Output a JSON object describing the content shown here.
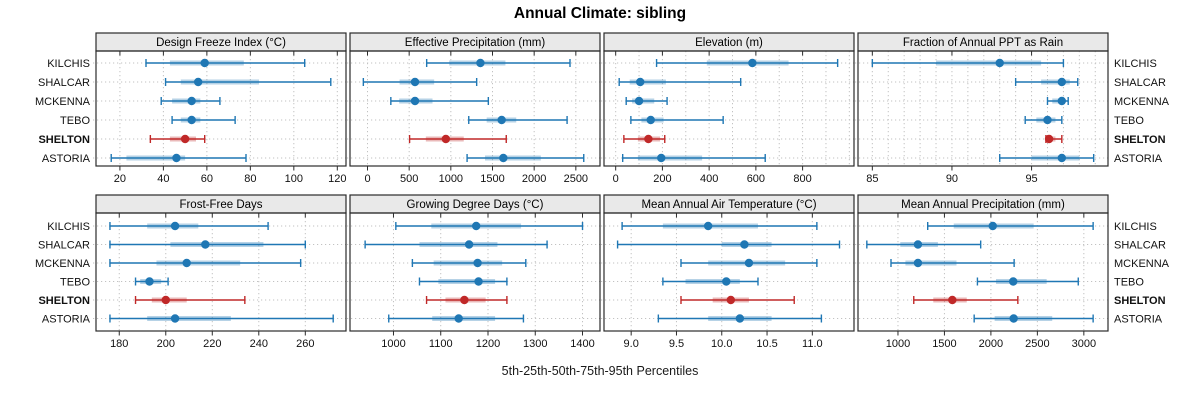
{
  "title": "Annual Climate: sibling",
  "caption": "5th-25th-50th-75th-95th Percentiles",
  "stations": [
    "KILCHIS",
    "SHALCAR",
    "MCKENNA",
    "TEBO",
    "SHELTON",
    "ASTORIA"
  ],
  "highlight_station": "SHELTON",
  "colors": {
    "series": "#1f77b4",
    "highlight": "#c02828",
    "grid": "#c2c2c2",
    "border": "#2b2b2b",
    "strip_bg": "#e9e9e9",
    "text": "#111111"
  },
  "percentile_labels": [
    "p5",
    "p25",
    "p50",
    "p75",
    "p95"
  ],
  "chart_data": [
    {
      "type": "errorbar",
      "title": "Design Freeze Index (°C)",
      "row": 0,
      "col": 0,
      "xlim": [
        9,
        124
      ],
      "ticks": [
        {
          "v": 20,
          "l": "20"
        },
        {
          "v": 40,
          "l": "40"
        },
        {
          "v": 60,
          "l": "60"
        },
        {
          "v": 80,
          "l": "80"
        },
        {
          "v": 100,
          "l": "100"
        },
        {
          "v": 120,
          "l": "120"
        }
      ],
      "grid": [
        20,
        40,
        60,
        80,
        100,
        120
      ],
      "series": {
        "KILCHIS": [
          32,
          43,
          59,
          77,
          105
        ],
        "SHALCAR": [
          41,
          48,
          56,
          84,
          117
        ],
        "MCKENNA": [
          39,
          44,
          53,
          57,
          66
        ],
        "TEBO": [
          44,
          48,
          53,
          57,
          73
        ],
        "SHELTON": [
          34,
          43,
          50,
          55,
          59
        ],
        "ASTORIA": [
          16,
          23,
          46,
          50,
          78
        ]
      }
    },
    {
      "type": "errorbar",
      "title": "Effective Precipitation (mm)",
      "row": 0,
      "col": 1,
      "xlim": [
        -210,
        2790
      ],
      "ticks": [
        {
          "v": 0,
          "l": "0"
        },
        {
          "v": 500,
          "l": "500"
        },
        {
          "v": 1000,
          "l": "1000"
        },
        {
          "v": 1500,
          "l": "1500"
        },
        {
          "v": 2000,
          "l": "2000"
        },
        {
          "v": 2500,
          "l": "2500"
        }
      ],
      "grid": [
        0,
        500,
        1000,
        1500,
        2000,
        2500
      ],
      "series": {
        "KILCHIS": [
          710,
          980,
          1355,
          1655,
          2430
        ],
        "SHALCAR": [
          -50,
          385,
          570,
          800,
          1310
        ],
        "MCKENNA": [
          280,
          380,
          570,
          780,
          1450
        ],
        "TEBO": [
          1215,
          1430,
          1610,
          1785,
          2395
        ],
        "SHELTON": [
          505,
          700,
          940,
          1155,
          1665
        ],
        "ASTORIA": [
          1195,
          1410,
          1630,
          2080,
          2595
        ]
      }
    },
    {
      "type": "errorbar",
      "title": "Elevation (m)",
      "row": 0,
      "col": 2,
      "xlim": [
        -50,
        1020
      ],
      "ticks": [
        {
          "v": 0,
          "l": "0"
        },
        {
          "v": 200,
          "l": "200"
        },
        {
          "v": 400,
          "l": "400"
        },
        {
          "v": 600,
          "l": "600"
        },
        {
          "v": 800,
          "l": "800"
        }
      ],
      "grid": [
        0,
        100,
        200,
        300,
        400,
        500,
        600,
        700,
        800,
        900,
        1000
      ],
      "series": {
        "KILCHIS": [
          175,
          390,
          585,
          740,
          950
        ],
        "SHALCAR": [
          15,
          60,
          105,
          215,
          535
        ],
        "MCKENNA": [
          45,
          70,
          100,
          165,
          220
        ],
        "TEBO": [
          65,
          110,
          150,
          205,
          460
        ],
        "SHELTON": [
          35,
          95,
          140,
          190,
          210
        ],
        "ASTORIA": [
          30,
          95,
          195,
          370,
          640
        ]
      }
    },
    {
      "type": "errorbar",
      "title": "Fraction of Annual PPT as Rain",
      "row": 0,
      "col": 3,
      "xlim": [
        84.1,
        99.8
      ],
      "ticks": [
        {
          "v": 85,
          "l": "85"
        },
        {
          "v": 90,
          "l": "90"
        },
        {
          "v": 95,
          "l": "95"
        }
      ],
      "grid": [
        85,
        86,
        87,
        88,
        89,
        90,
        91,
        92,
        93,
        94,
        95,
        96,
        97,
        98,
        99
      ],
      "series": {
        "KILCHIS": [
          85.0,
          89.0,
          93.0,
          95.6,
          97.0
        ],
        "SHALCAR": [
          94.0,
          95.6,
          96.9,
          97.4,
          97.9
        ],
        "MCKENNA": [
          96.0,
          96.3,
          96.9,
          97.1,
          97.3
        ],
        "TEBO": [
          94.6,
          95.3,
          96.0,
          96.5,
          96.9
        ],
        "SHELTON": [
          95.9,
          96.0,
          96.1,
          96.5,
          96.9
        ],
        "ASTORIA": [
          93.0,
          95.0,
          96.9,
          98.0,
          98.9
        ]
      }
    },
    {
      "type": "errorbar",
      "title": "Frost-Free Days",
      "row": 1,
      "col": 0,
      "xlim": [
        170,
        277.5
      ],
      "ticks": [
        {
          "v": 180,
          "l": "180"
        },
        {
          "v": 200,
          "l": "200"
        },
        {
          "v": 220,
          "l": "220"
        },
        {
          "v": 240,
          "l": "240"
        },
        {
          "v": 260,
          "l": "260"
        }
      ],
      "grid": [
        180,
        200,
        220,
        240,
        260
      ],
      "series": {
        "KILCHIS": [
          176,
          192,
          204,
          214,
          244
        ],
        "SHALCAR": [
          176,
          202,
          217,
          242,
          260
        ],
        "MCKENNA": [
          176,
          196,
          209,
          232,
          258
        ],
        "TEBO": [
          187,
          189,
          193,
          198,
          201
        ],
        "SHELTON": [
          187,
          194,
          200,
          209,
          234
        ],
        "ASTORIA": [
          176,
          192,
          204,
          228,
          272
        ]
      }
    },
    {
      "type": "errorbar",
      "title": "Growing Degree Days (°C)",
      "row": 1,
      "col": 1,
      "xlim": [
        908,
        1437
      ],
      "ticks": [
        {
          "v": 1000,
          "l": "1000"
        },
        {
          "v": 1100,
          "l": "1100"
        },
        {
          "v": 1200,
          "l": "1200"
        },
        {
          "v": 1300,
          "l": "1300"
        },
        {
          "v": 1400,
          "l": "1400"
        }
      ],
      "grid": [
        1000,
        1100,
        1200,
        1300,
        1400
      ],
      "series": {
        "KILCHIS": [
          1005,
          1080,
          1175,
          1270,
          1400
        ],
        "SHALCAR": [
          940,
          1055,
          1160,
          1220,
          1325
        ],
        "MCKENNA": [
          1040,
          1085,
          1178,
          1230,
          1280
        ],
        "TEBO": [
          1055,
          1095,
          1180,
          1215,
          1240
        ],
        "SHELTON": [
          1070,
          1110,
          1150,
          1195,
          1240
        ],
        "ASTORIA": [
          990,
          1082,
          1138,
          1215,
          1275
        ]
      }
    },
    {
      "type": "errorbar",
      "title": "Mean Annual Air Temperature (°C)",
      "row": 1,
      "col": 2,
      "xlim": [
        8.7,
        11.46
      ],
      "ticks": [
        {
          "v": 9.0,
          "l": "9.0"
        },
        {
          "v": 9.5,
          "l": "9.5"
        },
        {
          "v": 10.0,
          "l": "10.0"
        },
        {
          "v": 10.5,
          "l": "10.5"
        },
        {
          "v": 11.0,
          "l": "11.0"
        }
      ],
      "grid": [
        9.0,
        9.5,
        10.0,
        10.5,
        11.0
      ],
      "series": {
        "KILCHIS": [
          8.9,
          9.35,
          9.85,
          10.4,
          11.05
        ],
        "SHALCAR": [
          8.85,
          10.0,
          10.25,
          10.55,
          11.3
        ],
        "MCKENNA": [
          9.55,
          9.85,
          10.3,
          10.7,
          11.05
        ],
        "TEBO": [
          9.35,
          9.6,
          10.05,
          10.2,
          10.4
        ],
        "SHELTON": [
          9.55,
          9.9,
          10.1,
          10.3,
          10.8
        ],
        "ASTORIA": [
          9.3,
          9.85,
          10.2,
          10.55,
          11.1
        ]
      }
    },
    {
      "type": "errorbar",
      "title": "Mean Annual Precipitation (mm)",
      "row": 1,
      "col": 3,
      "xlim": [
        570,
        3260
      ],
      "ticks": [
        {
          "v": 1000,
          "l": "1000"
        },
        {
          "v": 1500,
          "l": "1500"
        },
        {
          "v": 2000,
          "l": "2000"
        },
        {
          "v": 2500,
          "l": "2500"
        },
        {
          "v": 3000,
          "l": "3000"
        }
      ],
      "grid": [
        1000,
        1500,
        2000,
        2500,
        3000
      ],
      "series": {
        "KILCHIS": [
          1320,
          1600,
          2020,
          2460,
          3100
        ],
        "SHALCAR": [
          665,
          1025,
          1215,
          1430,
          1890
        ],
        "MCKENNA": [
          925,
          1080,
          1215,
          1630,
          2250
        ],
        "TEBO": [
          1855,
          2055,
          2240,
          2600,
          2940
        ],
        "SHELTON": [
          1170,
          1380,
          1585,
          1740,
          2290
        ],
        "ASTORIA": [
          1820,
          2040,
          2245,
          2660,
          3100
        ]
      }
    }
  ]
}
